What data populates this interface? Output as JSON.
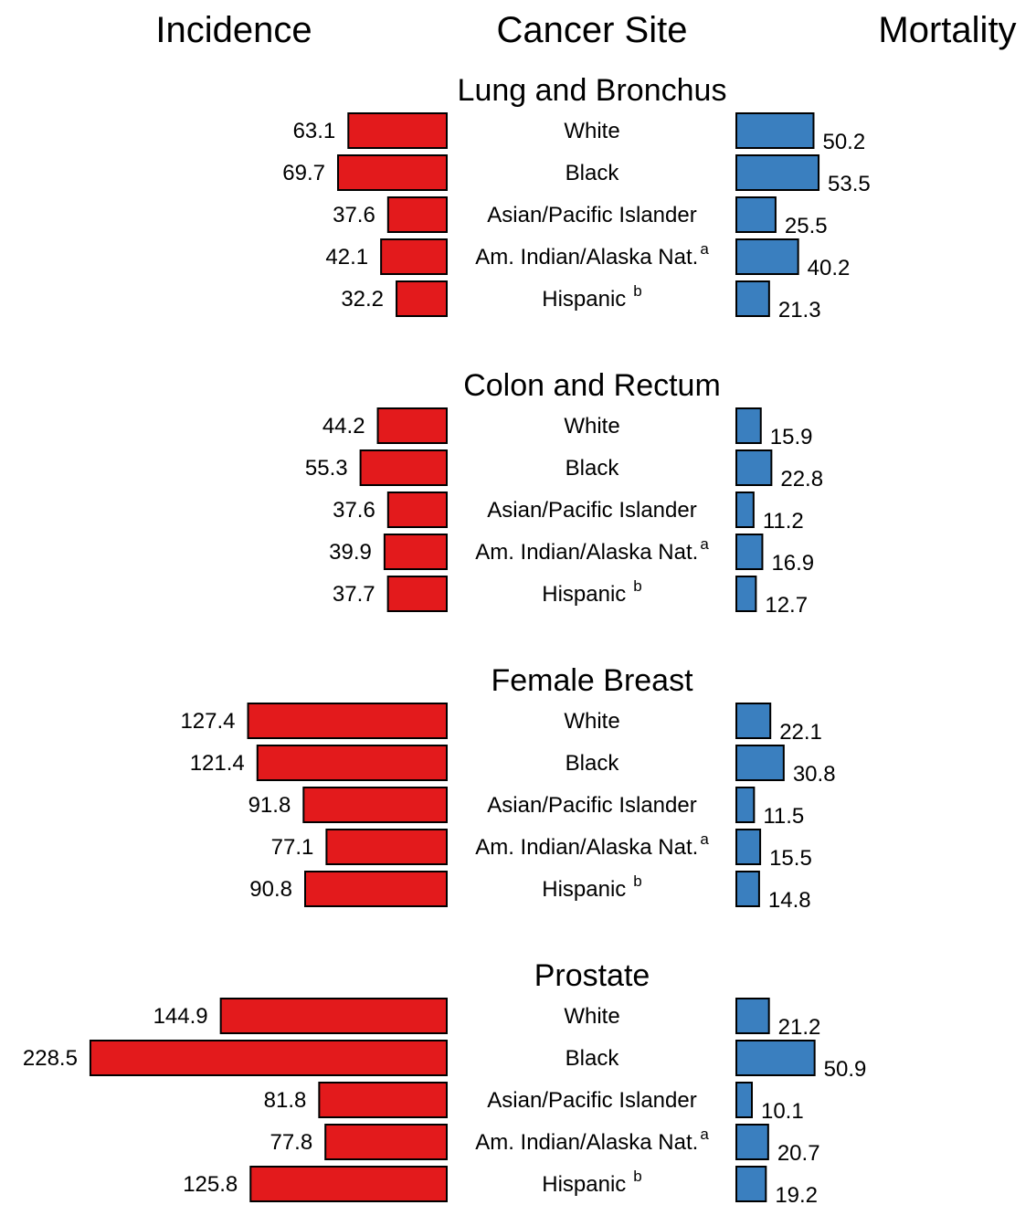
{
  "headers": {
    "incidence": "Incidence",
    "site": "Cancer Site",
    "mortality": "Mortality"
  },
  "colors": {
    "incidence": "#e31a1c",
    "mortality": "#3a7fbf",
    "outline": "#000000"
  },
  "chart_data": {
    "type": "bar",
    "layout": "mirrored horizontal bars (incidence left, mortality right)",
    "groups": [
      "White",
      "Black",
      "Asian/Pacific Islander",
      "Am. Indian/Alaska Nat.",
      "Hispanic"
    ],
    "group_superscripts": [
      "",
      "",
      "",
      "a",
      "b"
    ],
    "sites": [
      {
        "name": "Lung and Bronchus",
        "incidence": [
          63.1,
          69.7,
          37.6,
          42.1,
          32.2
        ],
        "mortality": [
          50.2,
          53.5,
          25.5,
          40.2,
          21.3
        ]
      },
      {
        "name": "Colon and Rectum",
        "incidence": [
          44.2,
          55.3,
          37.6,
          39.9,
          37.7
        ],
        "mortality": [
          15.9,
          22.8,
          11.2,
          16.9,
          12.7
        ]
      },
      {
        "name": "Female Breast",
        "incidence": [
          127.4,
          121.4,
          91.8,
          77.1,
          90.8
        ],
        "mortality": [
          22.1,
          30.8,
          11.5,
          15.5,
          14.8
        ]
      },
      {
        "name": "Prostate",
        "incidence": [
          144.9,
          228.5,
          81.8,
          77.8,
          125.8
        ],
        "mortality": [
          21.2,
          50.9,
          10.1,
          20.7,
          19.2
        ]
      }
    ]
  }
}
